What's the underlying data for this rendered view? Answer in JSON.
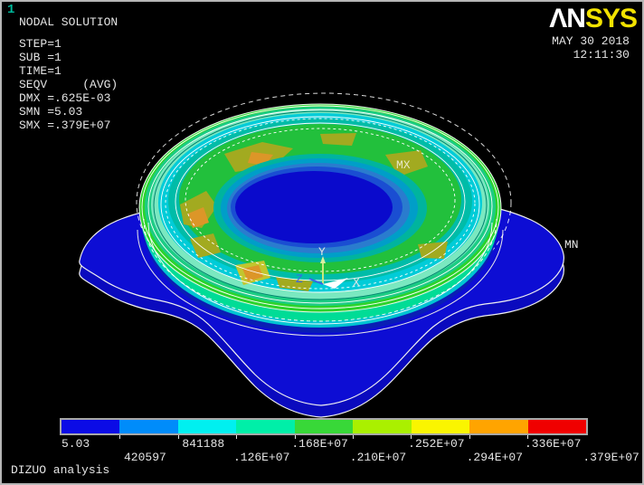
{
  "window": {
    "plot_number": "1"
  },
  "solution_info": {
    "title": "NODAL SOLUTION",
    "lines": [
      "STEP=1",
      "SUB =1",
      "TIME=1",
      "SEQV     (AVG)",
      "DMX =.625E-03",
      "SMN =5.03",
      "SMX =.379E+07"
    ]
  },
  "brand": {
    "logo_left": "ΛN",
    "logo_right": "SYS",
    "date": "MAY 30 2018",
    "time": "12:11:30"
  },
  "viewport": {
    "max_label": "MX",
    "min_label": "MN",
    "triad": {
      "x_label": "X",
      "y_label": "Y",
      "z_label": "Z"
    }
  },
  "legend": {
    "values": [
      "5.03",
      "420597",
      "841188",
      ".126E+07",
      ".168E+07",
      ".210E+07",
      ".252E+07",
      ".294E+07",
      ".336E+07",
      ".379E+07"
    ],
    "colors": [
      "#0b0be6",
      "#008cfa",
      "#00f0f0",
      "#00efa8",
      "#38d838",
      "#aaf000",
      "#faf500",
      "#ffa400",
      "#f00000"
    ]
  },
  "footer": {
    "caption": "DIZUO analysis"
  },
  "chart_data": {
    "type": "heatmap",
    "title": "NODAL SOLUTION",
    "quantity": "SEQV (AVG)",
    "step": "STEP=1",
    "sub": "SUB =1",
    "time": "TIME=1",
    "dmx": ".625E-03",
    "smn": "5.03",
    "smx": ".379E+07",
    "legend_values": [
      "5.03",
      "420597",
      "841188",
      ".126E+07",
      ".168E+07",
      ".210E+07",
      ".252E+07",
      ".294E+07",
      ".336E+07",
      ".379E+07"
    ],
    "legend_colors": [
      "#0b0be6",
      "#008cfa",
      "#00f0f0",
      "#00efa8",
      "#38d838",
      "#aaf000",
      "#faf500",
      "#ffa400",
      "#f00000"
    ],
    "min": 5.03,
    "max": 3790000
  }
}
